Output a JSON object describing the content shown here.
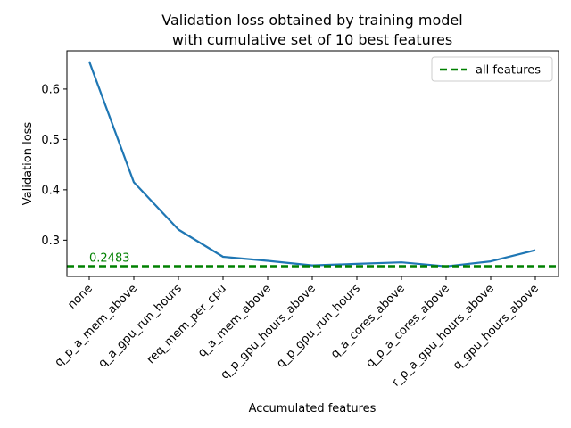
{
  "chart_data": {
    "type": "line",
    "title_lines": [
      "Validation loss obtained by training model",
      "with cumulative set of 10 best features"
    ],
    "xlabel": "Accumulated features",
    "ylabel": "Validation loss",
    "categories": [
      "none",
      "q_p_a_mem_above",
      "q_a_gpu_run_hours",
      "req_mem_per_cpu",
      "q_a_mem_above",
      "q_p_gpu_hours_above",
      "q_p_gpu_run_hours",
      "q_a_cores_above",
      "q_p_a_cores_above",
      "r_p_a_gpu_hours_above",
      "q_gpu_hours_above"
    ],
    "series": [
      {
        "color": "#1f77b4",
        "values": [
          0.655,
          0.415,
          0.321,
          0.267,
          0.259,
          0.25,
          0.253,
          0.256,
          0.248,
          0.258,
          0.28
        ]
      }
    ],
    "reference_line": {
      "name": "all features",
      "value": 0.2483,
      "label": "0.2483",
      "color": "#008000",
      "style": "dashed"
    },
    "ylim": [
      0.228,
      0.676
    ],
    "yticks": [
      {
        "value": 0.3,
        "label": "0.3"
      },
      {
        "value": 0.4,
        "label": "0.4"
      },
      {
        "value": 0.5,
        "label": "0.5"
      },
      {
        "value": 0.6,
        "label": "0.6"
      }
    ],
    "grid": false,
    "legend": {
      "placement": "top-right",
      "entries": [
        "all features"
      ]
    }
  }
}
